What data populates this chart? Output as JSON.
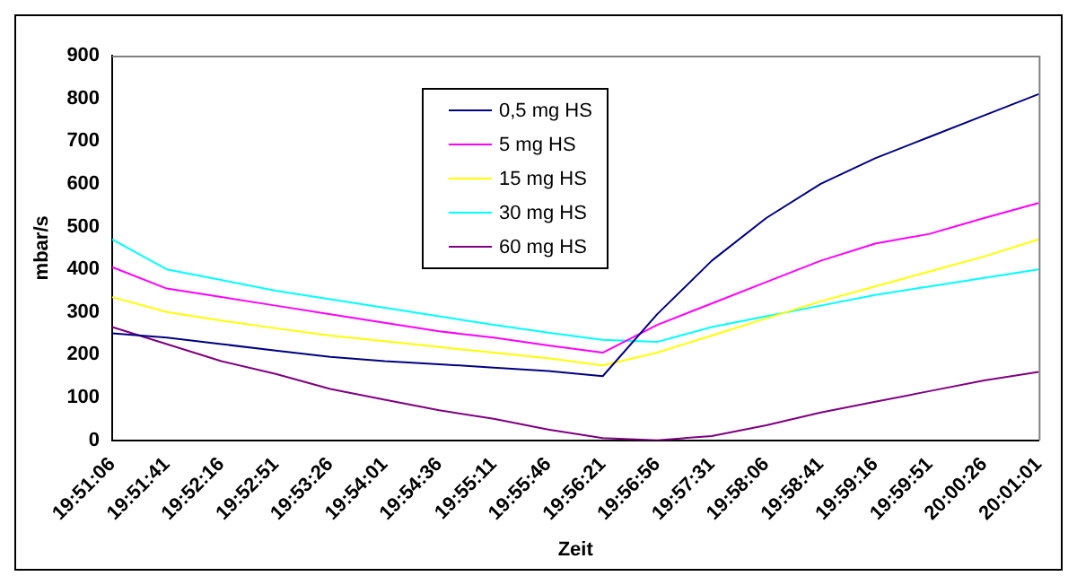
{
  "chart_data": {
    "type": "line",
    "xlabel": "Zeit",
    "ylabel": "mbar/s",
    "categories": [
      "19:51:06",
      "19:51:41",
      "19:52:16",
      "19:52:51",
      "19:53:26",
      "19:54:01",
      "19:54:36",
      "19:55:11",
      "19:55:46",
      "19:56:21",
      "19:56:56",
      "19:57:31",
      "19:58:06",
      "19:58:41",
      "19:59:16",
      "19:59:51",
      "20:00:26",
      "20:01:01"
    ],
    "series": [
      {
        "name": "0,5 mg HS",
        "color": "#000080",
        "values": [
          250,
          240,
          225,
          210,
          195,
          185,
          178,
          170,
          162,
          150,
          295,
          420,
          520,
          600,
          660,
          710,
          760,
          810
        ]
      },
      {
        "name": "5 mg HS",
        "color": "#ff00ff",
        "values": [
          405,
          355,
          335,
          315,
          295,
          275,
          255,
          240,
          222,
          205,
          270,
          320,
          370,
          420,
          460,
          483,
          520,
          555
        ]
      },
      {
        "name": "15 mg HS",
        "color": "#ffff00",
        "values": [
          335,
          300,
          280,
          262,
          245,
          232,
          218,
          205,
          192,
          175,
          205,
          245,
          285,
          325,
          360,
          395,
          430,
          470
        ]
      },
      {
        "name": "30 mg HS",
        "color": "#00ffff",
        "values": [
          470,
          400,
          375,
          350,
          330,
          310,
          290,
          270,
          252,
          235,
          230,
          265,
          290,
          315,
          340,
          360,
          380,
          400
        ]
      },
      {
        "name": "60 mg HS",
        "color": "#800080",
        "values": [
          265,
          225,
          185,
          155,
          120,
          95,
          70,
          50,
          25,
          5,
          0,
          10,
          35,
          65,
          90,
          115,
          140,
          160
        ]
      }
    ],
    "ylim": [
      0,
      900
    ],
    "yticks": [
      0,
      100,
      200,
      300,
      400,
      500,
      600,
      700,
      800,
      900
    ],
    "grid": false,
    "legend": "top",
    "marker": "none",
    "line_style": "solid"
  }
}
